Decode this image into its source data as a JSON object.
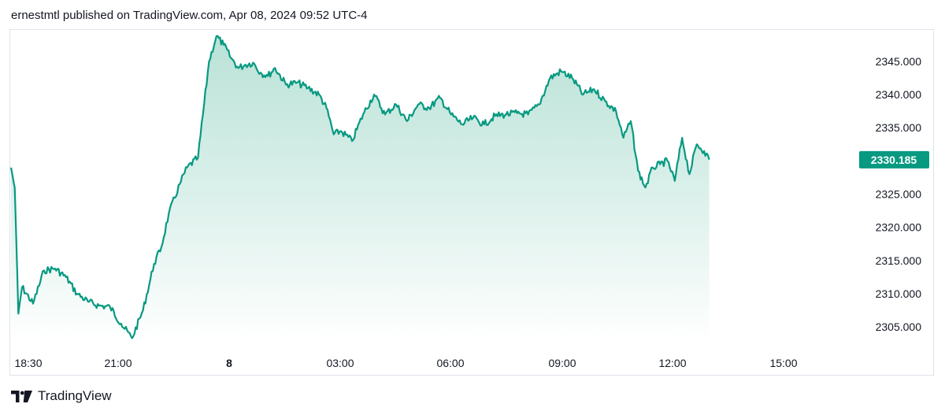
{
  "header": {
    "publish_line": "ernestmtl published on TradingView.com, Apr 08, 2024 09:52 UTC-4"
  },
  "footer": {
    "brand": "TradingView",
    "logo_icon": "tradingview-logo-icon"
  },
  "colors": {
    "line": "#089981",
    "fill_top": "#b2dfd3",
    "fill_bottom": "#ffffff",
    "price_badge": "#089981",
    "axis_text": "#131722",
    "border": "#e0e3eb"
  },
  "chart_data": {
    "type": "area",
    "title": "",
    "xlabel": "",
    "ylabel": "",
    "x_ticks": [
      "18:30",
      "21:00",
      "8",
      "03:00",
      "06:00",
      "09:00",
      "12:00",
      "15:00"
    ],
    "y_ticks": [
      "2345.000",
      "2340.000",
      "2335.000",
      "2330.000",
      "2325.000",
      "2320.000",
      "2315.000",
      "2310.000",
      "2305.000"
    ],
    "ylim": [
      2303.0,
      2349.5
    ],
    "last_price": 2330.185,
    "last_price_label": "2330.185",
    "grid": false,
    "series": [
      {
        "x": [
          "18:00",
          "18:05",
          "18:10",
          "18:15",
          "18:30",
          "18:45",
          "19:00",
          "19:15",
          "19:30",
          "19:45",
          "20:00",
          "20:15",
          "20:30",
          "20:45",
          "21:00",
          "21:15",
          "21:25",
          "21:35",
          "21:50",
          "22:00",
          "22:15",
          "22:30",
          "22:40",
          "22:50",
          "23:00",
          "23:10",
          "23:20",
          "23:30",
          "23:40",
          "23:50",
          "00:00",
          "00:15",
          "00:30",
          "00:45",
          "01:00",
          "01:10",
          "01:20",
          "01:30",
          "01:45",
          "02:00",
          "02:15",
          "02:30",
          "02:45",
          "03:00",
          "03:15",
          "03:30",
          "03:45",
          "04:00",
          "04:15",
          "04:30",
          "04:45",
          "05:00",
          "05:15",
          "05:30",
          "05:45",
          "06:00",
          "06:15",
          "06:30",
          "06:45",
          "07:00",
          "07:15",
          "07:30",
          "07:45",
          "07:55",
          "08:05",
          "08:15",
          "08:25",
          "08:35",
          "08:45",
          "08:55",
          "09:05",
          "09:15",
          "09:25",
          "09:35",
          "09:45",
          "09:52"
        ],
        "values": [
          2329.0,
          2326.0,
          2307.0,
          2311.0,
          2308.5,
          2313.5,
          2313.8,
          2312.5,
          2310.0,
          2308.8,
          2308.2,
          2308.0,
          2305.5,
          2303.3,
          2307.5,
          2314.5,
          2317.0,
          2322.0,
          2326.5,
          2329.0,
          2330.5,
          2345.0,
          2348.8,
          2347.5,
          2345.5,
          2344.0,
          2344.5,
          2344.8,
          2343.3,
          2342.8,
          2344.0,
          2341.5,
          2341.8,
          2341.0,
          2340.0,
          2338.0,
          2334.0,
          2334.5,
          2333.0,
          2337.0,
          2340.0,
          2337.0,
          2338.5,
          2336.0,
          2338.5,
          2338.0,
          2339.5,
          2337.0,
          2335.5,
          2336.5,
          2335.5,
          2336.8,
          2337.0,
          2337.2,
          2337.0,
          2338.5,
          2342.5,
          2343.5,
          2342.5,
          2340.0,
          2340.8,
          2339.0,
          2337.5,
          2333.5,
          2336.0,
          2328.5,
          2326.0,
          2329.0,
          2329.5,
          2330.0,
          2327.0,
          2333.5,
          2328.0,
          2332.5,
          2331.5,
          2330.2
        ]
      }
    ]
  }
}
